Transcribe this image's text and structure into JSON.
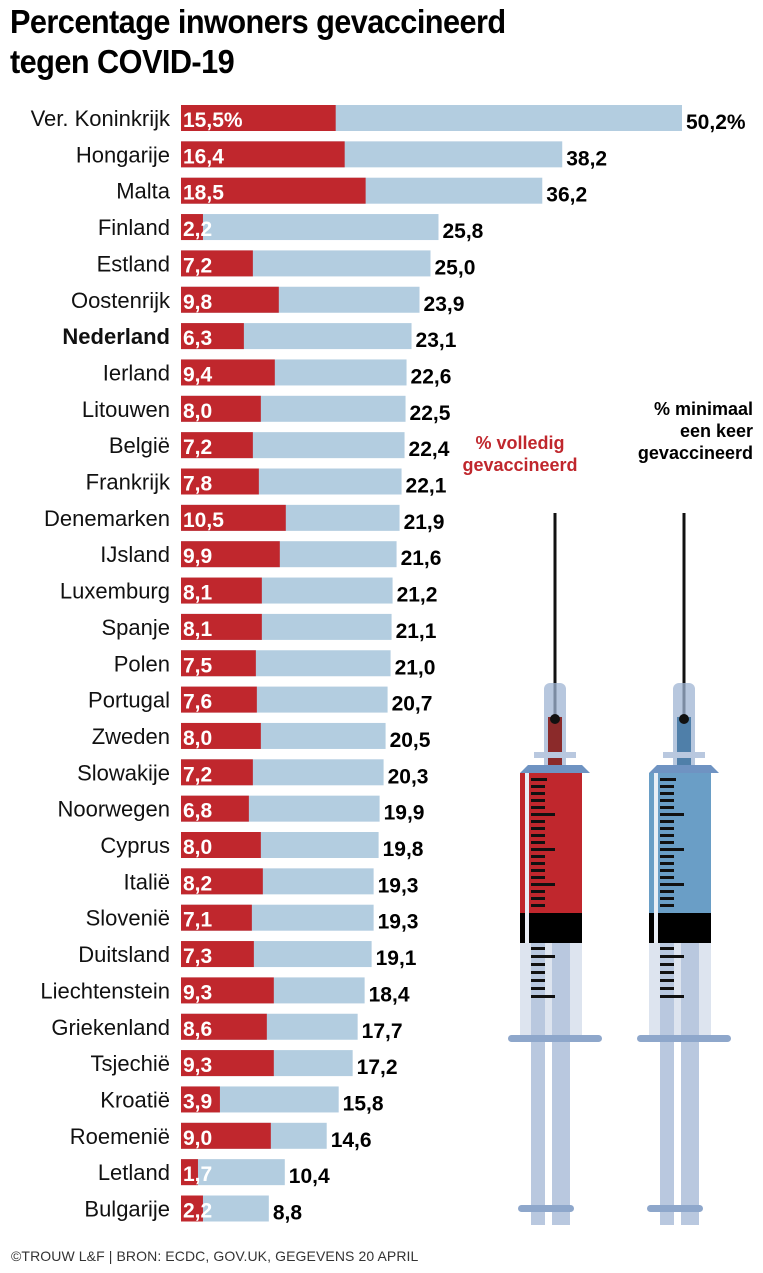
{
  "title_lines": [
    "Percentage inwoners gevaccineerd",
    "tegen COVID-19"
  ],
  "legend": {
    "fully": {
      "lines": [
        "% volledig",
        "gevaccineerd"
      ],
      "color": "#c0272d"
    },
    "once": {
      "lines": [
        "% minimaal",
        "een keer",
        "gevaccineerd"
      ],
      "color": "#b3cde0"
    }
  },
  "footer": "©TROUW L&F | BRON: ECDC, GOV.UK, GEGEVENS 20 APRIL",
  "chart_data": {
    "type": "bar",
    "orientation": "horizontal",
    "title": "Percentage inwoners gevaccineerd tegen COVID-19",
    "xlabel": "",
    "ylabel": "",
    "xlim": [
      0,
      50.2
    ],
    "grid": false,
    "legend_position": "right",
    "highlight": "Nederland",
    "categories": [
      "Ver. Koninkrijk",
      "Hongarije",
      "Malta",
      "Finland",
      "Estland",
      "Oostenrijk",
      "Nederland",
      "Ierland",
      "Litouwen",
      "België",
      "Frankrijk",
      "Denemarken",
      "IJsland",
      "Luxemburg",
      "Spanje",
      "Polen",
      "Portugal",
      "Zweden",
      "Slowakije",
      "Noorwegen",
      "Cyprus",
      "Italië",
      "Slovenië",
      "Duitsland",
      "Liechtenstein",
      "Griekenland",
      "Tsjechië",
      "Kroatië",
      "Roemenië",
      "Letland",
      "Bulgarije"
    ],
    "series": [
      {
        "name": "% minimaal een keer gevaccineerd",
        "color": "#b3cde0",
        "values": [
          50.2,
          38.2,
          36.2,
          25.8,
          25.0,
          23.9,
          23.1,
          22.6,
          22.5,
          22.4,
          22.1,
          21.9,
          21.6,
          21.2,
          21.1,
          21.0,
          20.7,
          20.5,
          20.3,
          19.9,
          19.8,
          19.3,
          19.3,
          19.1,
          18.4,
          17.7,
          17.2,
          15.8,
          14.6,
          10.4,
          8.8
        ],
        "labels": [
          "50,2%",
          "38,2",
          "36,2",
          "25,8",
          "25,0",
          "23,9",
          "23,1",
          "22,6",
          "22,5",
          "22,4",
          "22,1",
          "21,9",
          "21,6",
          "21,2",
          "21,1",
          "21,0",
          "20,7",
          "20,5",
          "20,3",
          "19,9",
          "19,8",
          "19,3",
          "19,3",
          "19,1",
          "18,4",
          "17,7",
          "17,2",
          "15,8",
          "14,6",
          "10,4",
          "8,8"
        ]
      },
      {
        "name": "% volledig gevaccineerd",
        "color": "#c0272d",
        "values": [
          15.5,
          16.4,
          18.5,
          2.2,
          7.2,
          9.8,
          6.3,
          9.4,
          8.0,
          7.2,
          7.8,
          10.5,
          9.9,
          8.1,
          8.1,
          7.5,
          7.6,
          8.0,
          7.2,
          6.8,
          8.0,
          8.2,
          7.1,
          7.3,
          9.3,
          8.6,
          9.3,
          3.9,
          9.0,
          1.7,
          2.2
        ],
        "labels": [
          "15,5%",
          "16,4",
          "18,5",
          "2,2",
          "7,2",
          "9,8",
          "6,3",
          "9,4",
          "8,0",
          "7,2",
          "7,8",
          "10,5",
          "9,9",
          "8,1",
          "8,1",
          "7,5",
          "7,6",
          "8,0",
          "7,2",
          "6,8",
          "8,0",
          "8,2",
          "7,1",
          "7,3",
          "9,3",
          "8,6",
          "9,3",
          "3,9",
          "9,0",
          "1,7",
          "2,2"
        ]
      }
    ]
  }
}
